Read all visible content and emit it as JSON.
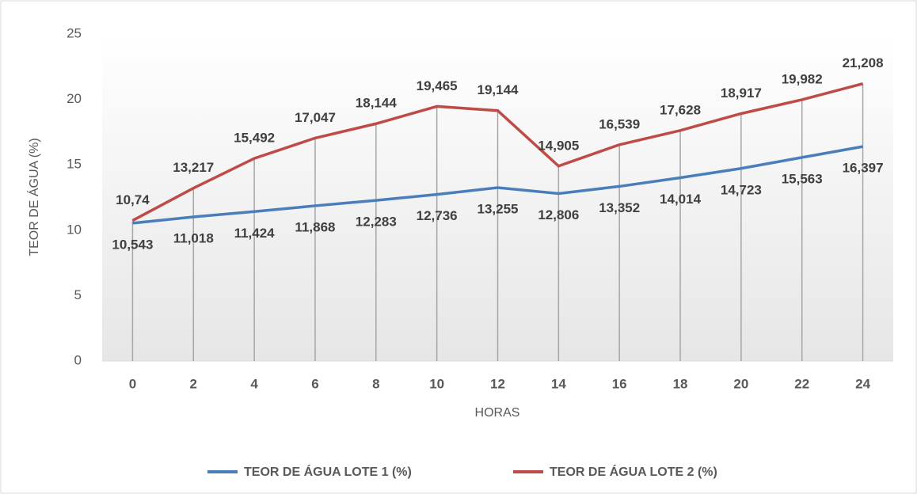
{
  "chart_data": {
    "type": "line",
    "x_label": "HORAS",
    "y_label": "TEOR DE ÁGUA (%)",
    "categories": [
      "0",
      "2",
      "4",
      "6",
      "8",
      "10",
      "12",
      "14",
      "16",
      "18",
      "20",
      "22",
      "24"
    ],
    "series": [
      {
        "name": "TEOR DE ÁGUA LOTE 1 (%)",
        "color": "#4a7ebb",
        "values": [
          10.543,
          11.018,
          11.424,
          11.868,
          12.283,
          12.736,
          13.255,
          12.806,
          13.352,
          14.014,
          14.723,
          15.563,
          16.397
        ],
        "value_labels": [
          "10,543",
          "11,018",
          "11,424",
          "11,868",
          "12,283",
          "12,736",
          "13,255",
          "12,806",
          "13,352",
          "14,014",
          "14,723",
          "15,563",
          "16,397"
        ]
      },
      {
        "name": "TEOR DE ÁGUA LOTE 2 (%)",
        "color": "#be4b48",
        "values": [
          10.74,
          13.217,
          15.492,
          17.047,
          18.144,
          19.465,
          19.144,
          14.905,
          16.539,
          17.628,
          18.917,
          19.982,
          21.208
        ],
        "value_labels": [
          "10,74",
          "13,217",
          "15,492",
          "17,047",
          "18,144",
          "19,465",
          "19,144",
          "14,905",
          "16,539",
          "17,628",
          "18,917",
          "19,982",
          "21,208"
        ]
      }
    ],
    "ylim": [
      0,
      25
    ],
    "yticks": [
      0,
      5,
      10,
      15,
      20,
      25
    ],
    "legend": "bottom"
  }
}
